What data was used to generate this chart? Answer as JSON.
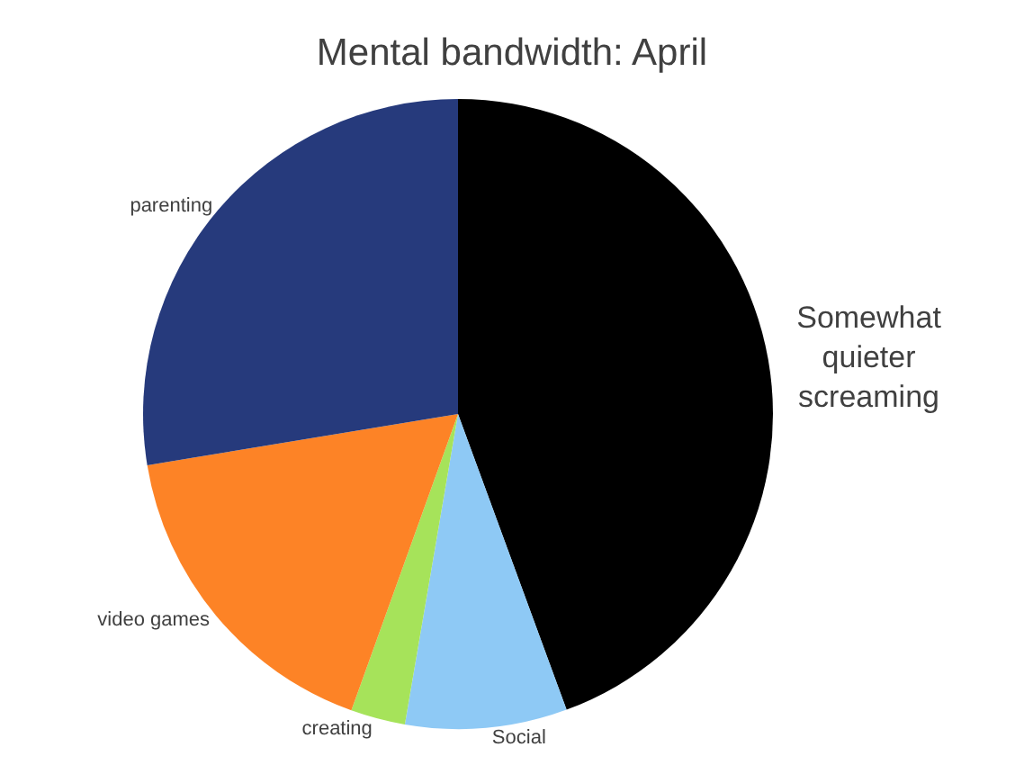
{
  "chart_data": {
    "type": "pie",
    "title": "Mental bandwidth: April",
    "categories": [
      "Somewhat quieter screaming",
      "Social",
      "creating",
      "video games",
      "parenting"
    ],
    "values": [
      44.4,
      8.3,
      2.8,
      16.9,
      27.6
    ],
    "colors": [
      "#000000",
      "#8ec9f5",
      "#a6e35a",
      "#fd8326",
      "#263a7c"
    ],
    "legend": false
  }
}
